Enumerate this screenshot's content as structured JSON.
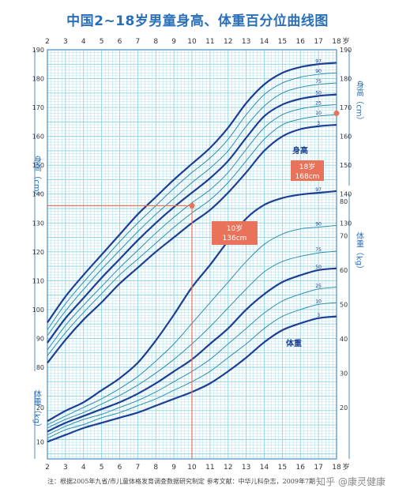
{
  "title": "中国2~18岁男童身高、体重百分位曲线图",
  "footnote": "注：根据2005年九省/市儿童体格发育调查数据研究制定      参考文献：中华儿科杂志，2009年7期",
  "watermark": "知乎 @康灵健康",
  "colors": {
    "grid": "#8fd3e0",
    "frame": "#4a8fc8",
    "curve_major": "#1c3f94",
    "curve_minor": "#2e8fb0",
    "callout": "#e8735a",
    "text": "#2a6fb8"
  },
  "chart_data": [
    {
      "type": "line",
      "name_label": "身高",
      "x_ticks": [
        "2",
        "3",
        "4",
        "5",
        "6",
        "7",
        "8",
        "9",
        "10",
        "11",
        "12",
        "13",
        "14",
        "15",
        "16",
        "17",
        "18"
      ],
      "x_unit": "岁",
      "xlim": [
        2,
        18
      ],
      "ylim": [
        80,
        190
      ],
      "y_ticks": [
        80,
        90,
        100,
        110,
        120,
        130,
        140,
        150,
        160,
        170,
        180,
        190
      ],
      "ylabel_left": "身高（cm）",
      "ylabel_right": "身高（cm）",
      "x": [
        2,
        3,
        4,
        5,
        6,
        7,
        8,
        9,
        10,
        11,
        12,
        13,
        14,
        15,
        16,
        17,
        18
      ],
      "series": [
        {
          "name": "97",
          "major": true,
          "values": [
            95.5,
            104.5,
            112,
            119,
            126,
            133,
            139,
            145,
            150.5,
            156,
            163,
            171.5,
            178,
            182,
            184,
            185,
            185.5
          ]
        },
        {
          "name": "90",
          "major": false,
          "values": [
            93,
            102,
            109.5,
            116.5,
            123.5,
            130,
            136,
            142,
            147.5,
            152.5,
            159,
            167.5,
            174.5,
            178.5,
            180.5,
            181.5,
            182
          ]
        },
        {
          "name": "75",
          "major": false,
          "values": [
            91,
            99.5,
            107,
            114,
            120.5,
            127,
            133,
            138.5,
            144,
            149,
            155,
            163.5,
            170.5,
            175,
            177,
            178,
            178.5
          ]
        },
        {
          "name": "50",
          "major": true,
          "values": [
            88.5,
            97,
            104,
            111,
            117.5,
            124,
            130,
            135.5,
            140.5,
            145.5,
            151.5,
            159.5,
            167,
            171,
            173,
            174,
            174.5
          ]
        },
        {
          "name": "25",
          "major": false,
          "values": [
            86,
            94.5,
            101.5,
            108,
            114.5,
            120.5,
            126.5,
            132,
            137,
            141.5,
            147.5,
            155.5,
            163,
            167.5,
            169.5,
            170.5,
            171
          ]
        },
        {
          "name": "10",
          "major": false,
          "values": [
            84,
            92,
            99,
            105.5,
            112,
            117.5,
            123,
            128.5,
            133.5,
            138,
            144,
            151.5,
            159,
            164,
            166,
            167,
            167.5
          ]
        },
        {
          "name": "3",
          "major": true,
          "values": [
            81.5,
            89.5,
            96.5,
            102.5,
            109,
            114.5,
            120,
            125,
            130,
            134.5,
            140.5,
            147.5,
            155,
            160,
            162.5,
            163.5,
            164
          ]
        }
      ],
      "annotations": [
        {
          "x": 10,
          "y": 136,
          "label": "10岁\n136cm"
        },
        {
          "x": 18,
          "y": 168,
          "label": "18岁\n168cm"
        }
      ]
    },
    {
      "type": "line",
      "name_label": "体重",
      "xlim": [
        2,
        18
      ],
      "ylim": [
        5,
        80
      ],
      "y_ticks_left": [
        10,
        20
      ],
      "y_ticks_right": [
        20,
        30,
        40,
        50,
        60,
        70,
        80
      ],
      "ylabel_left": "体重（kg）",
      "ylabel_right": "体重（kg）",
      "x": [
        2,
        3,
        4,
        5,
        6,
        7,
        8,
        9,
        10,
        11,
        12,
        13,
        14,
        15,
        16,
        17,
        18
      ],
      "series": [
        {
          "name": "97",
          "major": true,
          "values": [
            16,
            19,
            21.5,
            25,
            28.5,
            33,
            39.5,
            47,
            55,
            61.5,
            68.5,
            75,
            79,
            81,
            82,
            82.5,
            83
          ]
        },
        {
          "name": "90",
          "major": false,
          "values": [
            15,
            17.5,
            20,
            22.5,
            25.5,
            29,
            33.5,
            38.5,
            44.5,
            50.5,
            56.5,
            62.5,
            67.5,
            70.5,
            72,
            72.5,
            73
          ]
        },
        {
          "name": "75",
          "major": false,
          "values": [
            14,
            16.5,
            18.5,
            21,
            23.5,
            26.5,
            30,
            34,
            38.5,
            43.5,
            49,
            54.5,
            59.5,
            62.5,
            64,
            65,
            65.5
          ]
        },
        {
          "name": "50",
          "major": true,
          "values": [
            13,
            15.5,
            17.5,
            19.5,
            21.5,
            24,
            27,
            30.5,
            34,
            38.5,
            43,
            48.5,
            53,
            56.5,
            58.5,
            60,
            60.5
          ]
        },
        {
          "name": "25",
          "major": false,
          "values": [
            12,
            14.5,
            16.5,
            18,
            20,
            22,
            24.5,
            27.5,
            30.5,
            34,
            38.5,
            43,
            47.5,
            51,
            53,
            54.5,
            55
          ]
        },
        {
          "name": "10",
          "major": false,
          "values": [
            11,
            13.5,
            15,
            17,
            18.5,
            20.5,
            22.5,
            25,
            27.5,
            30.5,
            34.5,
            38.5,
            43,
            46.5,
            48.5,
            50,
            50.5
          ]
        },
        {
          "name": "3",
          "major": true,
          "values": [
            10,
            12,
            14,
            15.5,
            17,
            18.5,
            20.5,
            22.5,
            24.5,
            27,
            30.5,
            34.5,
            39,
            42.5,
            44.5,
            46,
            46.5
          ]
        }
      ]
    }
  ]
}
